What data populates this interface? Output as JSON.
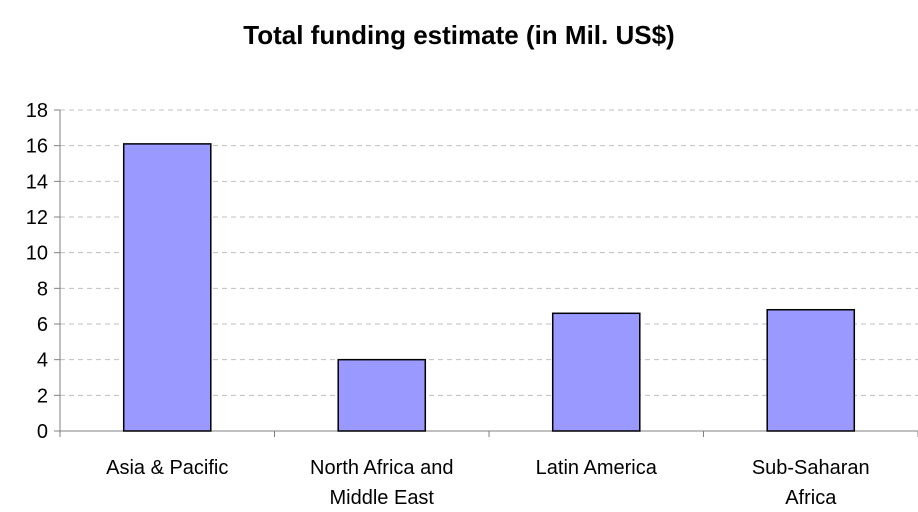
{
  "chart_data": {
    "type": "bar",
    "title": "Total funding estimate (in Mil. US$)",
    "categories": [
      [
        "Asia & Pacific"
      ],
      [
        "North Africa and",
        "Middle East"
      ],
      [
        "Latin America"
      ],
      [
        "Sub-Saharan",
        "Africa"
      ]
    ],
    "values": [
      16.1,
      4.0,
      6.6,
      6.8
    ],
    "ylim": [
      0,
      18
    ],
    "yticks": [
      0,
      2,
      4,
      6,
      8,
      10,
      12,
      14,
      16,
      18
    ],
    "grid": true,
    "bar_color": "#9999ff",
    "bar_border_color": "#000000",
    "grid_color": "#bfbfbf"
  }
}
